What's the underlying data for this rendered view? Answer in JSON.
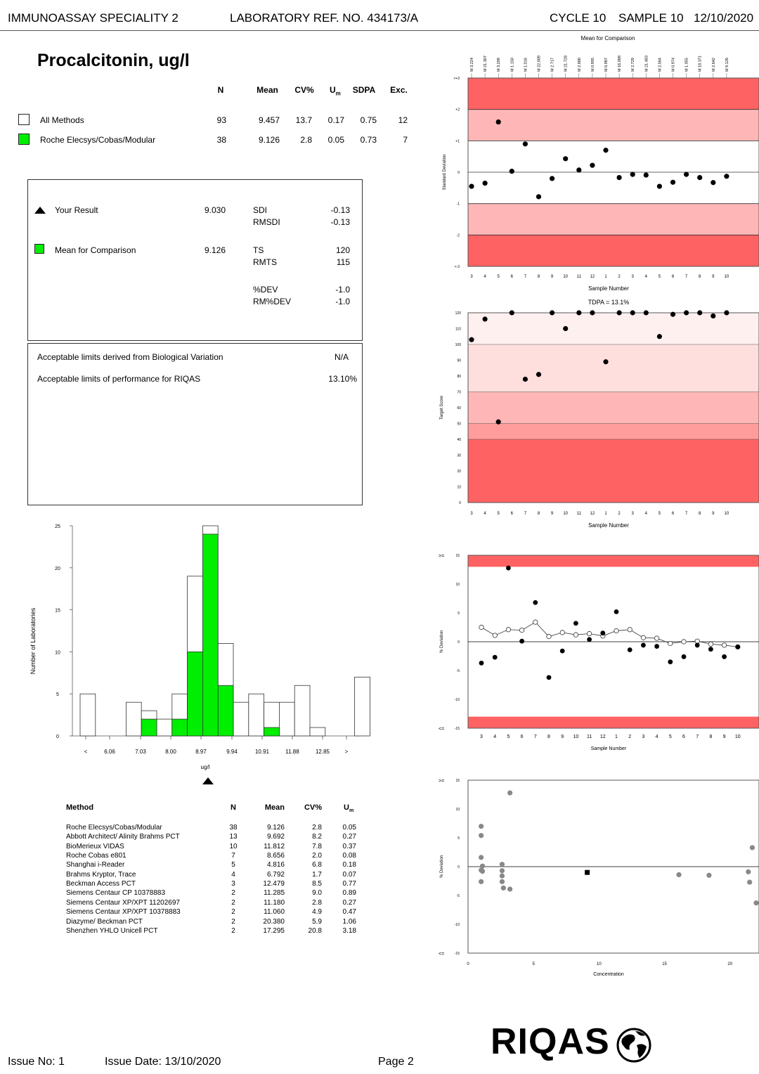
{
  "header": {
    "programme": "IMMUNOASSAY SPECIALITY 2",
    "lab_ref": "LABORATORY REF. NO.  434173/A",
    "cycle": "CYCLE 10",
    "sample": "SAMPLE 10",
    "date": "12/10/2020"
  },
  "analyte": "Procalcitonin, ug/l",
  "stats": {
    "headers": {
      "n": "N",
      "mean": "Mean",
      "cv": "CV%",
      "um": "U",
      "um_sub": "m",
      "sdpa": "SDPA",
      "exc": "Exc."
    },
    "rows": [
      {
        "label": "All Methods",
        "n": "93",
        "mean": "9.457",
        "cv": "13.7",
        "um": "0.17",
        "sdpa": "0.75",
        "exc": "12",
        "swatch": "#ffffff"
      },
      {
        "label": "Roche Elecsys/Cobas/Modular",
        "n": "38",
        "mean": "9.126",
        "cv": "2.8",
        "um": "0.05",
        "sdpa": "0.73",
        "exc": "7",
        "swatch": "#00ee00"
      }
    ]
  },
  "result": {
    "your_label": "Your Result",
    "your_value": "9.030",
    "sdi_label": "SDI",
    "sdi": "-0.13",
    "rmsdi_label": "RMSDI",
    "rmsdi": "-0.13",
    "mfc_label": "Mean for Comparison",
    "mfc_value": "9.126",
    "ts_label": "TS",
    "ts": "120",
    "rmts_label": "RMTS",
    "rmts": "115",
    "dev_label": "%DEV",
    "dev": "-1.0",
    "rmdev_label": "RM%DEV",
    "rmdev": "-1.0"
  },
  "limits": {
    "bio_label": "Acceptable limits derived from Biological Variation",
    "bio_value": "N/A",
    "perf_label": "Acceptable limits of performance for  RIQAS",
    "perf_value": "13.10%"
  },
  "methods_table": {
    "headers": {
      "method": "Method",
      "n": "N",
      "mean": "Mean",
      "cv": "CV%",
      "um": "U",
      "um_sub": "m"
    },
    "rows": [
      {
        "method": "Roche Elecsys/Cobas/Modular",
        "n": "38",
        "mean": "9.126",
        "cv": "2.8",
        "um": "0.05"
      },
      {
        "method": "Abbott Architect/ Alinity Brahms PCT",
        "n": "13",
        "mean": "9.692",
        "cv": "8.2",
        "um": "0.27"
      },
      {
        "method": "BioMerieux VIDAS",
        "n": "10",
        "mean": "11.812",
        "cv": "7.8",
        "um": "0.37"
      },
      {
        "method": "Roche Cobas e801",
        "n": "7",
        "mean": "8.656",
        "cv": "2.0",
        "um": "0.08"
      },
      {
        "method": "Shanghai i-Reader",
        "n": "5",
        "mean": "4.816",
        "cv": "6.8",
        "um": "0.18"
      },
      {
        "method": "Brahms Kryptor, Trace",
        "n": "4",
        "mean": "6.792",
        "cv": "1.7",
        "um": "0.07"
      },
      {
        "method": "Beckman Access PCT",
        "n": "3",
        "mean": "12.479",
        "cv": "8.5",
        "um": "0.77"
      },
      {
        "method": "Siemens Centaur CP 10378883",
        "n": "2",
        "mean": "11.285",
        "cv": "9.0",
        "um": "0.89"
      },
      {
        "method": "Siemens Centaur XP/XPT 11202697",
        "n": "2",
        "mean": "11.180",
        "cv": "2.8",
        "um": "0.27"
      },
      {
        "method": "Siemens Centaur XP/XPT 10378883",
        "n": "2",
        "mean": "11.060",
        "cv": "4.9",
        "um": "0.47"
      },
      {
        "method": "Diazyme/ Beckman PCT",
        "n": "2",
        "mean": "20.380",
        "cv": "5.9",
        "um": "1.06"
      },
      {
        "method": "Shenzhen YHLO Unicell PCT",
        "n": "2",
        "mean": "17.295",
        "cv": "20.8",
        "um": "3.18"
      }
    ]
  },
  "footer": {
    "issue_no": "Issue No: 1",
    "issue_date": "Issue Date: 13/10/2020",
    "page": "Page 2",
    "logo": "RIQAS"
  },
  "colors": {
    "red_dark": "#ff6262",
    "red_mid": "#ffb6b6",
    "red_light": "#ffdede",
    "red_pale": "#fff0f0",
    "green": "#00ee00"
  },
  "chart_data": [
    {
      "type": "scatter",
      "name": "sdi-chart",
      "title": "Mean for Comparison",
      "ylabel": "Standard Deviation",
      "xlabel": "Sample Number",
      "ylim": [
        -3,
        3
      ],
      "ytick_labels": [
        ">+3",
        "+2",
        "+1",
        "0",
        "-1",
        "-2",
        "<-3"
      ],
      "top_labels": [
        "M 3.224",
        "M 21.307",
        "M 3.209",
        "M 1.150",
        "M 1.016",
        "M 22.009",
        "M 2.717",
        "M 21.728",
        "M 2.680",
        "M 0.995",
        "M 0.987",
        "M 16.098",
        "M 2.729",
        "M 21.483",
        "M 2.564",
        "M 0.974",
        "M 1.055",
        "M 18.371",
        "M 2.642",
        "M 9.126"
      ],
      "x": [
        "3",
        "4",
        "5",
        "6",
        "7",
        "8",
        "9",
        "10",
        "11",
        "12",
        "1",
        "2",
        "3",
        "4",
        "5",
        "6",
        "7",
        "8",
        "9",
        "10"
      ],
      "values": [
        -0.45,
        -0.35,
        1.6,
        0.03,
        0.9,
        -0.78,
        -0.2,
        0.43,
        0.07,
        0.22,
        0.7,
        -0.17,
        -0.07,
        -0.09,
        -0.45,
        -0.32,
        -0.07,
        -0.17,
        -0.33,
        -0.13
      ]
    },
    {
      "type": "scatter",
      "name": "target-score-chart",
      "title": "TDPA = 13.1%",
      "ylabel": "Target Score",
      "xlabel": "Sample Number",
      "ylim": [
        0,
        120
      ],
      "yticks": [
        0,
        10,
        20,
        30,
        40,
        50,
        60,
        70,
        80,
        90,
        100,
        110,
        120
      ],
      "x": [
        "3",
        "4",
        "5",
        "6",
        "7",
        "8",
        "9",
        "10",
        "11",
        "12",
        "1",
        "2",
        "3",
        "4",
        "5",
        "6",
        "7",
        "8",
        "9",
        "10"
      ],
      "values": [
        103,
        116,
        51,
        120,
        78,
        81,
        120,
        110,
        120,
        120,
        89,
        120,
        120,
        120,
        105,
        119,
        120,
        120,
        118,
        120
      ]
    },
    {
      "type": "line",
      "name": "percent-deviation-chart",
      "ylabel": "% Deviation",
      "xlabel": "Sample Number",
      "ylim": [
        -15,
        15
      ],
      "ytick_labels": [
        "15",
        "10",
        "5",
        "0",
        "-5",
        "-10",
        "-15"
      ],
      "x": [
        "3",
        "4",
        "5",
        "6",
        "7",
        "8",
        "9",
        "10",
        "11",
        "12",
        "1",
        "2",
        "3",
        "4",
        "5",
        "6",
        "7",
        "8",
        "9",
        "10"
      ],
      "series": [
        {
          "name": "% deviation",
          "values": [
            -3.7,
            -2.7,
            12.8,
            0.1,
            6.8,
            -6.2,
            -1.6,
            3.2,
            0.4,
            1.5,
            5.2,
            -1.4,
            -0.6,
            -0.8,
            -3.5,
            -2.6,
            -0.6,
            -1.3,
            -2.6,
            -0.9
          ]
        },
        {
          "name": "running mean % deviation",
          "values": [
            2.5,
            1.1,
            2.1,
            2.0,
            3.4,
            0.9,
            1.6,
            1.2,
            1.4,
            1.0,
            1.9,
            2.1,
            0.7,
            0.6,
            -0.3,
            0.0,
            0.1,
            -0.4,
            -0.6,
            -0.9
          ]
        }
      ]
    },
    {
      "type": "scatter",
      "name": "deviation-vs-concentration-chart",
      "ylabel": "% Deviation",
      "xlabel": "Concentration",
      "xlim": [
        0,
        22
      ],
      "ylim": [
        -15,
        15
      ],
      "xticks": [
        0,
        5,
        10,
        15,
        20
      ],
      "ytick_labels": [
        "15",
        "10",
        "5",
        "0",
        "-5",
        "-10",
        "-15"
      ],
      "points": [
        [
          1.0,
          7.0
        ],
        [
          1.0,
          5.4
        ],
        [
          1.0,
          1.6
        ],
        [
          1.0,
          -0.6
        ],
        [
          1.0,
          -2.6
        ],
        [
          1.1,
          0.1
        ],
        [
          1.1,
          -0.8
        ],
        [
          2.6,
          0.4
        ],
        [
          2.6,
          -0.7
        ],
        [
          2.6,
          -1.6
        ],
        [
          2.6,
          -2.6
        ],
        [
          2.7,
          -3.7
        ],
        [
          3.2,
          12.8
        ],
        [
          3.2,
          -3.9
        ],
        [
          16.1,
          -1.4
        ],
        [
          18.4,
          -1.5
        ],
        [
          21.5,
          -2.7
        ],
        [
          21.4,
          -0.9
        ],
        [
          21.7,
          3.3
        ],
        [
          22.0,
          -6.3
        ]
      ],
      "result_point": [
        9.1,
        -1.0
      ]
    },
    {
      "type": "bar",
      "name": "histogram",
      "xlabel": "ug/l",
      "ylabel": "Number of Laboratories",
      "ylim": [
        0,
        25
      ],
      "yticks": [
        0,
        5,
        10,
        15,
        20,
        25
      ],
      "tick_labels": [
        "<",
        "6.06",
        "7.03",
        "8.00",
        "8.97",
        "9.94",
        "10.91",
        "11.88",
        "12.85",
        ">"
      ],
      "series": [
        {
          "name": "All Methods",
          "values": [
            5,
            0,
            0,
            4,
            3,
            2,
            5,
            19,
            25,
            11,
            4,
            5,
            4,
            4,
            6,
            1,
            0,
            7
          ]
        },
        {
          "name": "Roche Elecsys/Cobas/Modular",
          "values": [
            0,
            0,
            0,
            0,
            2,
            0,
            2,
            10,
            24,
            6,
            0,
            0,
            1,
            0,
            0,
            0,
            0,
            0
          ]
        }
      ],
      "result_marker": 9.03
    }
  ]
}
